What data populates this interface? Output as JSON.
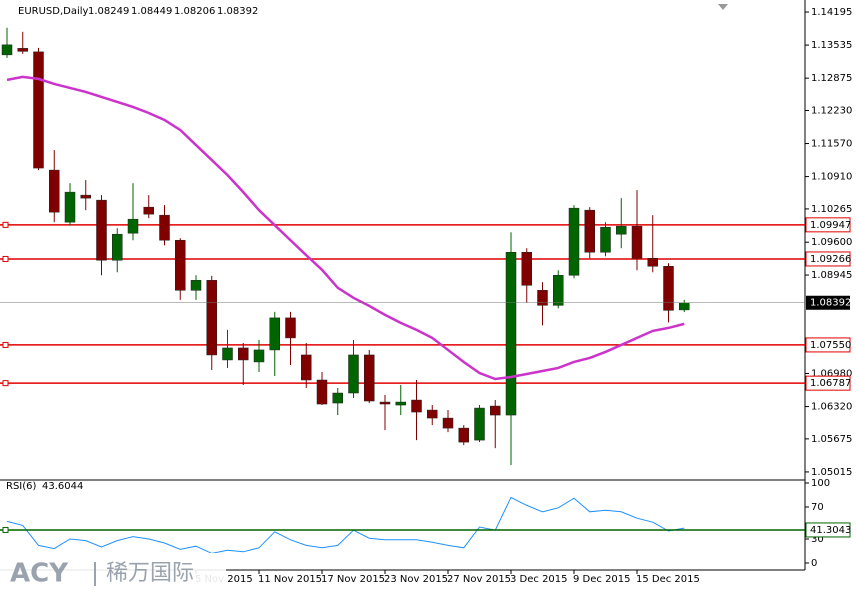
{
  "chart_data": {
    "type": "candlestick",
    "title": "EURUSD,Daily",
    "categories": [
      null,
      null,
      null,
      null,
      null,
      null,
      null,
      null,
      null,
      null,
      null,
      null,
      "5 Nov 2015",
      null,
      null,
      null,
      "11 Nov 2015",
      null,
      null,
      null,
      "17 Nov 2015",
      null,
      null,
      null,
      "23 Nov 2015",
      null,
      null,
      null,
      "27 Nov 2015",
      null,
      null,
      null,
      "3 Dec 2015",
      null,
      null,
      null,
      "9 Dec 2015",
      null,
      null,
      null,
      "15 Dec 2015",
      null,
      null,
      null
    ],
    "open": [
      1.1334,
      1.1347,
      1.134,
      1.1104,
      1.1,
      1.1054,
      1.1044,
      1.0924,
      1.0978,
      1.103,
      1.1014,
      1.0964,
      1.0864,
      1.0884,
      1.0725,
      1.0749,
      1.0721,
      1.0745,
      1.0809,
      1.0735,
      1.0685,
      1.0639,
      1.0659,
      1.0735,
      1.0641,
      1.0635,
      1.0645,
      1.0625,
      1.0609,
      1.0589,
      1.0565,
      1.0633,
      1.0615,
      1.094,
      1.0864,
      1.0834,
      1.0894,
      1.1024,
      1.094,
      1.0976,
      1.0992,
      1.0928,
      1.0912,
      1.08249
    ],
    "high": [
      1.1388,
      1.138,
      1.1348,
      1.1144,
      1.1078,
      1.1084,
      1.1054,
      1.0988,
      1.1078,
      1.1054,
      1.1034,
      1.0968,
      1.0894,
      1.0893,
      1.0785,
      1.0759,
      1.0765,
      1.0821,
      1.0821,
      1.0759,
      1.0701,
      1.0669,
      1.0765,
      1.0745,
      1.0655,
      1.0675,
      1.0685,
      1.0635,
      1.0625,
      1.0595,
      1.0635,
      1.0645,
      1.098,
      1.0948,
      1.088,
      1.0904,
      1.1034,
      1.103,
      1.1,
      1.1048,
      1.1064,
      1.1014,
      1.0918,
      1.08449
    ],
    "low": [
      1.1328,
      1.1336,
      1.1104,
      1.1,
      1.0994,
      1.1024,
      1.0894,
      1.09,
      1.0964,
      1.1008,
      1.0954,
      1.0845,
      1.0845,
      1.0705,
      1.0709,
      1.0675,
      1.0701,
      1.0693,
      1.0715,
      1.0669,
      1.0635,
      1.0615,
      1.0649,
      1.0639,
      1.0585,
      1.0615,
      1.0565,
      1.0595,
      1.0581,
      1.0555,
      1.0561,
      1.0549,
      1.0515,
      1.084,
      1.0794,
      1.0828,
      1.0888,
      1.0928,
      1.0932,
      1.0948,
      1.0904,
      1.09,
      1.08,
      1.08206
    ],
    "close": [
      1.1354,
      1.1341,
      1.1108,
      1.102,
      1.106,
      1.1048,
      1.0924,
      1.0976,
      1.1006,
      1.1016,
      1.0964,
      1.0864,
      1.0884,
      1.0735,
      1.0749,
      1.0725,
      1.0745,
      1.0809,
      1.0769,
      1.0685,
      1.0637,
      1.0659,
      1.0735,
      1.0643,
      1.0637,
      1.0641,
      1.0621,
      1.0609,
      1.0589,
      1.0561,
      1.0629,
      1.0615,
      1.094,
      1.0874,
      1.0834,
      1.0894,
      1.1028,
      1.094,
      1.099,
      1.0992,
      1.0928,
      1.0912,
      1.0824,
      1.08392
    ],
    "up_color": "#006400",
    "down_color": "#800000",
    "ma": {
      "color": "#cc33cc",
      "values": [
        1.1284,
        1.129,
        1.1286,
        1.1276,
        1.1268,
        1.126,
        1.125,
        1.124,
        1.123,
        1.1218,
        1.1204,
        1.1184,
        1.1154,
        1.1124,
        1.1094,
        1.106,
        1.1024,
        1.0994,
        1.0964,
        1.0934,
        1.0905,
        1.0869,
        1.0849,
        1.0833,
        1.0815,
        1.0799,
        1.0785,
        1.0769,
        1.0745,
        1.0721,
        1.0699,
        1.0687,
        1.0691,
        1.0697,
        1.0703,
        1.0709,
        1.0721,
        1.0729,
        1.0741,
        1.0755,
        1.0769,
        1.0783,
        1.0789,
        1.0797
      ]
    },
    "levels": [
      1.09947,
      1.09266,
      {
        "value": 1.0755,
        "label": "1.07550"
      },
      1.06787
    ],
    "level_color": "#e00000",
    "ylim": [
      1.04854,
      1.14435
    ],
    "yticks": [
      1.14195,
      1.13535,
      1.12875,
      {
        "value": 1.1223,
        "label": "1.12230"
      },
      {
        "value": 1.1157,
        "label": "1.11570"
      },
      {
        "value": 1.1091,
        "label": "1.10910"
      },
      1.10265,
      {
        "value": 1.096,
        "label": "1.09600"
      },
      1.08945,
      {
        "value": 1.0698,
        "label": "1.06980"
      },
      {
        "value": 1.0632,
        "label": "1.06320"
      },
      1.05675,
      1.05015
    ],
    "rsi": {
      "label": "RSI(6)",
      "color": "#1e90ff",
      "values": [
        52,
        47,
        22,
        18,
        30,
        28,
        20,
        28,
        33,
        30,
        25,
        17,
        21,
        12,
        16,
        14,
        19,
        39,
        29,
        22,
        19,
        22,
        41,
        31,
        29,
        29,
        29,
        26,
        22,
        19,
        45,
        41,
        82,
        72,
        64,
        69,
        81,
        64,
        66,
        64,
        56,
        51,
        40,
        43.6044
      ],
      "level": 41.3043,
      "level_color": "#006400",
      "ylim": [
        -8.75,
        103.75
      ],
      "yticks": [
        100,
        70,
        30,
        0
      ]
    }
  },
  "watermark": {
    "brand": "ACY",
    "name": "稀万国际"
  }
}
